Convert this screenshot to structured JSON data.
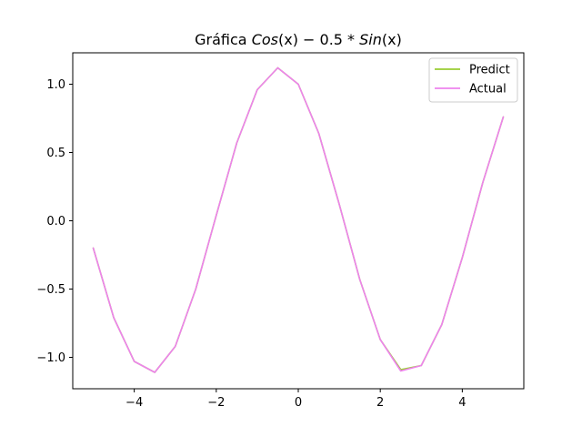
{
  "chart_data": {
    "type": "line",
    "title": "Gráfica Cos(x) − 0.5 * Sin(x)",
    "title_parts": {
      "prefix": "Gráfica ",
      "f1": "Cos",
      "p1": "(x)",
      "op": " − 0.5 * ",
      "f2": "Sin",
      "p2": "(x)"
    },
    "xlabel": "",
    "ylabel": "",
    "xlim": [
      -5.5,
      5.5
    ],
    "ylim": [
      -1.23,
      1.23
    ],
    "xticks": [
      -4,
      -2,
      0,
      2,
      4
    ],
    "xtick_labels": [
      "−4",
      "−2",
      "0",
      "2",
      "4"
    ],
    "yticks": [
      -1.0,
      -0.5,
      0.0,
      0.5,
      1.0
    ],
    "ytick_labels": [
      "−1.0",
      "−0.5",
      "0.0",
      "0.5",
      "1.0"
    ],
    "grid": false,
    "legend_position": "top-right",
    "x": [
      -5.0,
      -4.5,
      -4.0,
      -3.5,
      -3.0,
      -2.5,
      -2.0,
      -1.5,
      -1.0,
      -0.5,
      0.0,
      0.5,
      1.0,
      1.5,
      2.0,
      2.5,
      3.0,
      3.5,
      4.0,
      4.5,
      5.0
    ],
    "series": [
      {
        "name": "Predict",
        "color": "#9acd32",
        "values": [
          -0.2,
          -0.71,
          -1.03,
          -1.11,
          -0.92,
          -0.5,
          0.04,
          0.57,
          0.96,
          1.12,
          1.0,
          0.64,
          0.12,
          -0.43,
          -0.87,
          -1.09,
          -1.06,
          -0.76,
          -0.27,
          0.28,
          0.76
        ]
      },
      {
        "name": "Actual",
        "color": "#ee82ee",
        "values": [
          -0.2,
          -0.71,
          -1.03,
          -1.11,
          -0.92,
          -0.5,
          0.04,
          0.57,
          0.96,
          1.12,
          1.0,
          0.64,
          0.12,
          -0.43,
          -0.87,
          -1.1,
          -1.06,
          -0.76,
          -0.27,
          0.28,
          0.76
        ]
      }
    ]
  }
}
